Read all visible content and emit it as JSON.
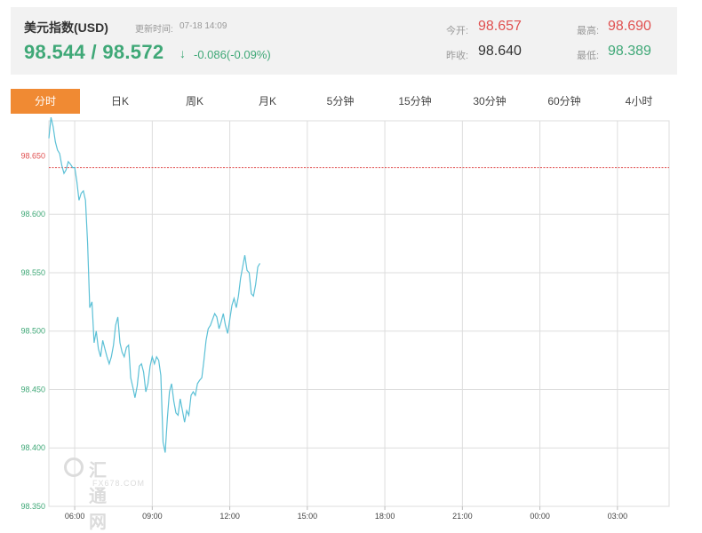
{
  "header": {
    "name": "美元指数(USD)",
    "time_label": "更新时间:",
    "time": "07-18 14:09",
    "price": "98.544 / 98.572",
    "arrow": "↓",
    "change": "-0.086(-0.09%)",
    "stats": {
      "open_label": "今开:",
      "open": "98.657",
      "prev_label": "昨收:",
      "prev": "98.640",
      "high_label": "最高:",
      "high": "98.690",
      "low_label": "最低:",
      "low": "98.389"
    }
  },
  "tabs": [
    "分时",
    "日K",
    "周K",
    "月K",
    "5分钟",
    "15分钟",
    "30分钟",
    "60分钟",
    "4小时"
  ],
  "watermark": {
    "name": "汇通网",
    "sub": "FX678.COM"
  },
  "colors": {
    "line": "#5bc0d6",
    "ref": "#e05050",
    "up": "#e05050",
    "down": "#3fa877",
    "grid": "#dddddd",
    "tab_active": "#f08a33"
  },
  "chart_data": {
    "type": "line",
    "title": "",
    "xlabel": "",
    "ylabel": "",
    "ylim": [
      98.35,
      98.68
    ],
    "yticks": [
      "98.650",
      "98.600",
      "98.550",
      "98.500",
      "98.450",
      "98.400",
      "98.350"
    ],
    "xticks": [
      "06:00",
      "09:00",
      "12:00",
      "15:00",
      "18:00",
      "21:00",
      "00:00",
      "03:00"
    ],
    "reference_line": 98.64,
    "x_start": "05:00",
    "x_end": "05:00 (next day)",
    "series": [
      {
        "points": [
          [
            "05:00",
            98.665
          ],
          [
            "05:05",
            98.683
          ],
          [
            "05:10",
            98.675
          ],
          [
            "05:15",
            98.662
          ],
          [
            "05:20",
            98.655
          ],
          [
            "05:25",
            98.652
          ],
          [
            "05:30",
            98.642
          ],
          [
            "05:35",
            98.635
          ],
          [
            "05:40",
            98.638
          ],
          [
            "05:45",
            98.645
          ],
          [
            "05:50",
            98.643
          ],
          [
            "05:55",
            98.64
          ],
          [
            "06:00",
            98.64
          ],
          [
            "06:05",
            98.628
          ],
          [
            "06:10",
            98.612
          ],
          [
            "06:15",
            98.618
          ],
          [
            "06:20",
            98.62
          ],
          [
            "06:25",
            98.612
          ],
          [
            "06:30",
            98.575
          ],
          [
            "06:35",
            98.52
          ],
          [
            "06:40",
            98.525
          ],
          [
            "06:45",
            98.49
          ],
          [
            "06:50",
            98.5
          ],
          [
            "06:55",
            98.485
          ],
          [
            "07:00",
            98.478
          ],
          [
            "07:05",
            98.492
          ],
          [
            "07:10",
            98.485
          ],
          [
            "07:15",
            98.478
          ],
          [
            "07:20",
            98.472
          ],
          [
            "07:25",
            98.478
          ],
          [
            "07:30",
            98.488
          ],
          [
            "07:35",
            98.505
          ],
          [
            "07:40",
            98.512
          ],
          [
            "07:45",
            98.49
          ],
          [
            "07:50",
            98.482
          ],
          [
            "07:55",
            98.478
          ],
          [
            "08:00",
            98.486
          ],
          [
            "08:05",
            98.488
          ],
          [
            "08:10",
            98.46
          ],
          [
            "08:15",
            98.452
          ],
          [
            "08:20",
            98.443
          ],
          [
            "08:25",
            98.453
          ],
          [
            "08:30",
            98.47
          ],
          [
            "08:35",
            98.472
          ],
          [
            "08:40",
            98.465
          ],
          [
            "08:45",
            98.448
          ],
          [
            "08:50",
            98.455
          ],
          [
            "08:55",
            98.47
          ],
          [
            "09:00",
            98.478
          ],
          [
            "09:05",
            98.472
          ],
          [
            "09:10",
            98.478
          ],
          [
            "09:15",
            98.475
          ],
          [
            "09:20",
            98.462
          ],
          [
            "09:25",
            98.405
          ],
          [
            "09:30",
            98.396
          ],
          [
            "09:35",
            98.425
          ],
          [
            "09:40",
            98.448
          ],
          [
            "09:45",
            98.455
          ],
          [
            "09:50",
            98.44
          ],
          [
            "09:55",
            98.43
          ],
          [
            "10:00",
            98.428
          ],
          [
            "10:05",
            98.442
          ],
          [
            "10:10",
            98.432
          ],
          [
            "10:15",
            98.422
          ],
          [
            "10:20",
            98.432
          ],
          [
            "10:25",
            98.428
          ],
          [
            "10:30",
            98.445
          ],
          [
            "10:35",
            98.448
          ],
          [
            "10:40",
            98.445
          ],
          [
            "10:45",
            98.455
          ],
          [
            "10:50",
            98.458
          ],
          [
            "10:55",
            98.46
          ],
          [
            "11:00",
            98.475
          ],
          [
            "11:05",
            98.492
          ],
          [
            "11:10",
            98.502
          ],
          [
            "11:15",
            98.505
          ],
          [
            "11:20",
            98.51
          ],
          [
            "11:25",
            98.515
          ],
          [
            "11:30",
            98.512
          ],
          [
            "11:35",
            98.502
          ],
          [
            "11:40",
            98.508
          ],
          [
            "11:45",
            98.515
          ],
          [
            "11:50",
            98.505
          ],
          [
            "11:55",
            98.498
          ],
          [
            "12:00",
            98.51
          ],
          [
            "12:05",
            98.522
          ],
          [
            "12:10",
            98.528
          ],
          [
            "12:15",
            98.52
          ],
          [
            "12:20",
            98.53
          ],
          [
            "12:25",
            98.545
          ],
          [
            "12:30",
            98.555
          ],
          [
            "12:35",
            98.565
          ],
          [
            "12:40",
            98.552
          ],
          [
            "12:45",
            98.55
          ],
          [
            "12:50",
            98.532
          ],
          [
            "12:55",
            98.53
          ],
          [
            "13:00",
            98.54
          ],
          [
            "13:05",
            98.555
          ],
          [
            "13:10",
            98.558
          ]
        ]
      }
    ]
  }
}
